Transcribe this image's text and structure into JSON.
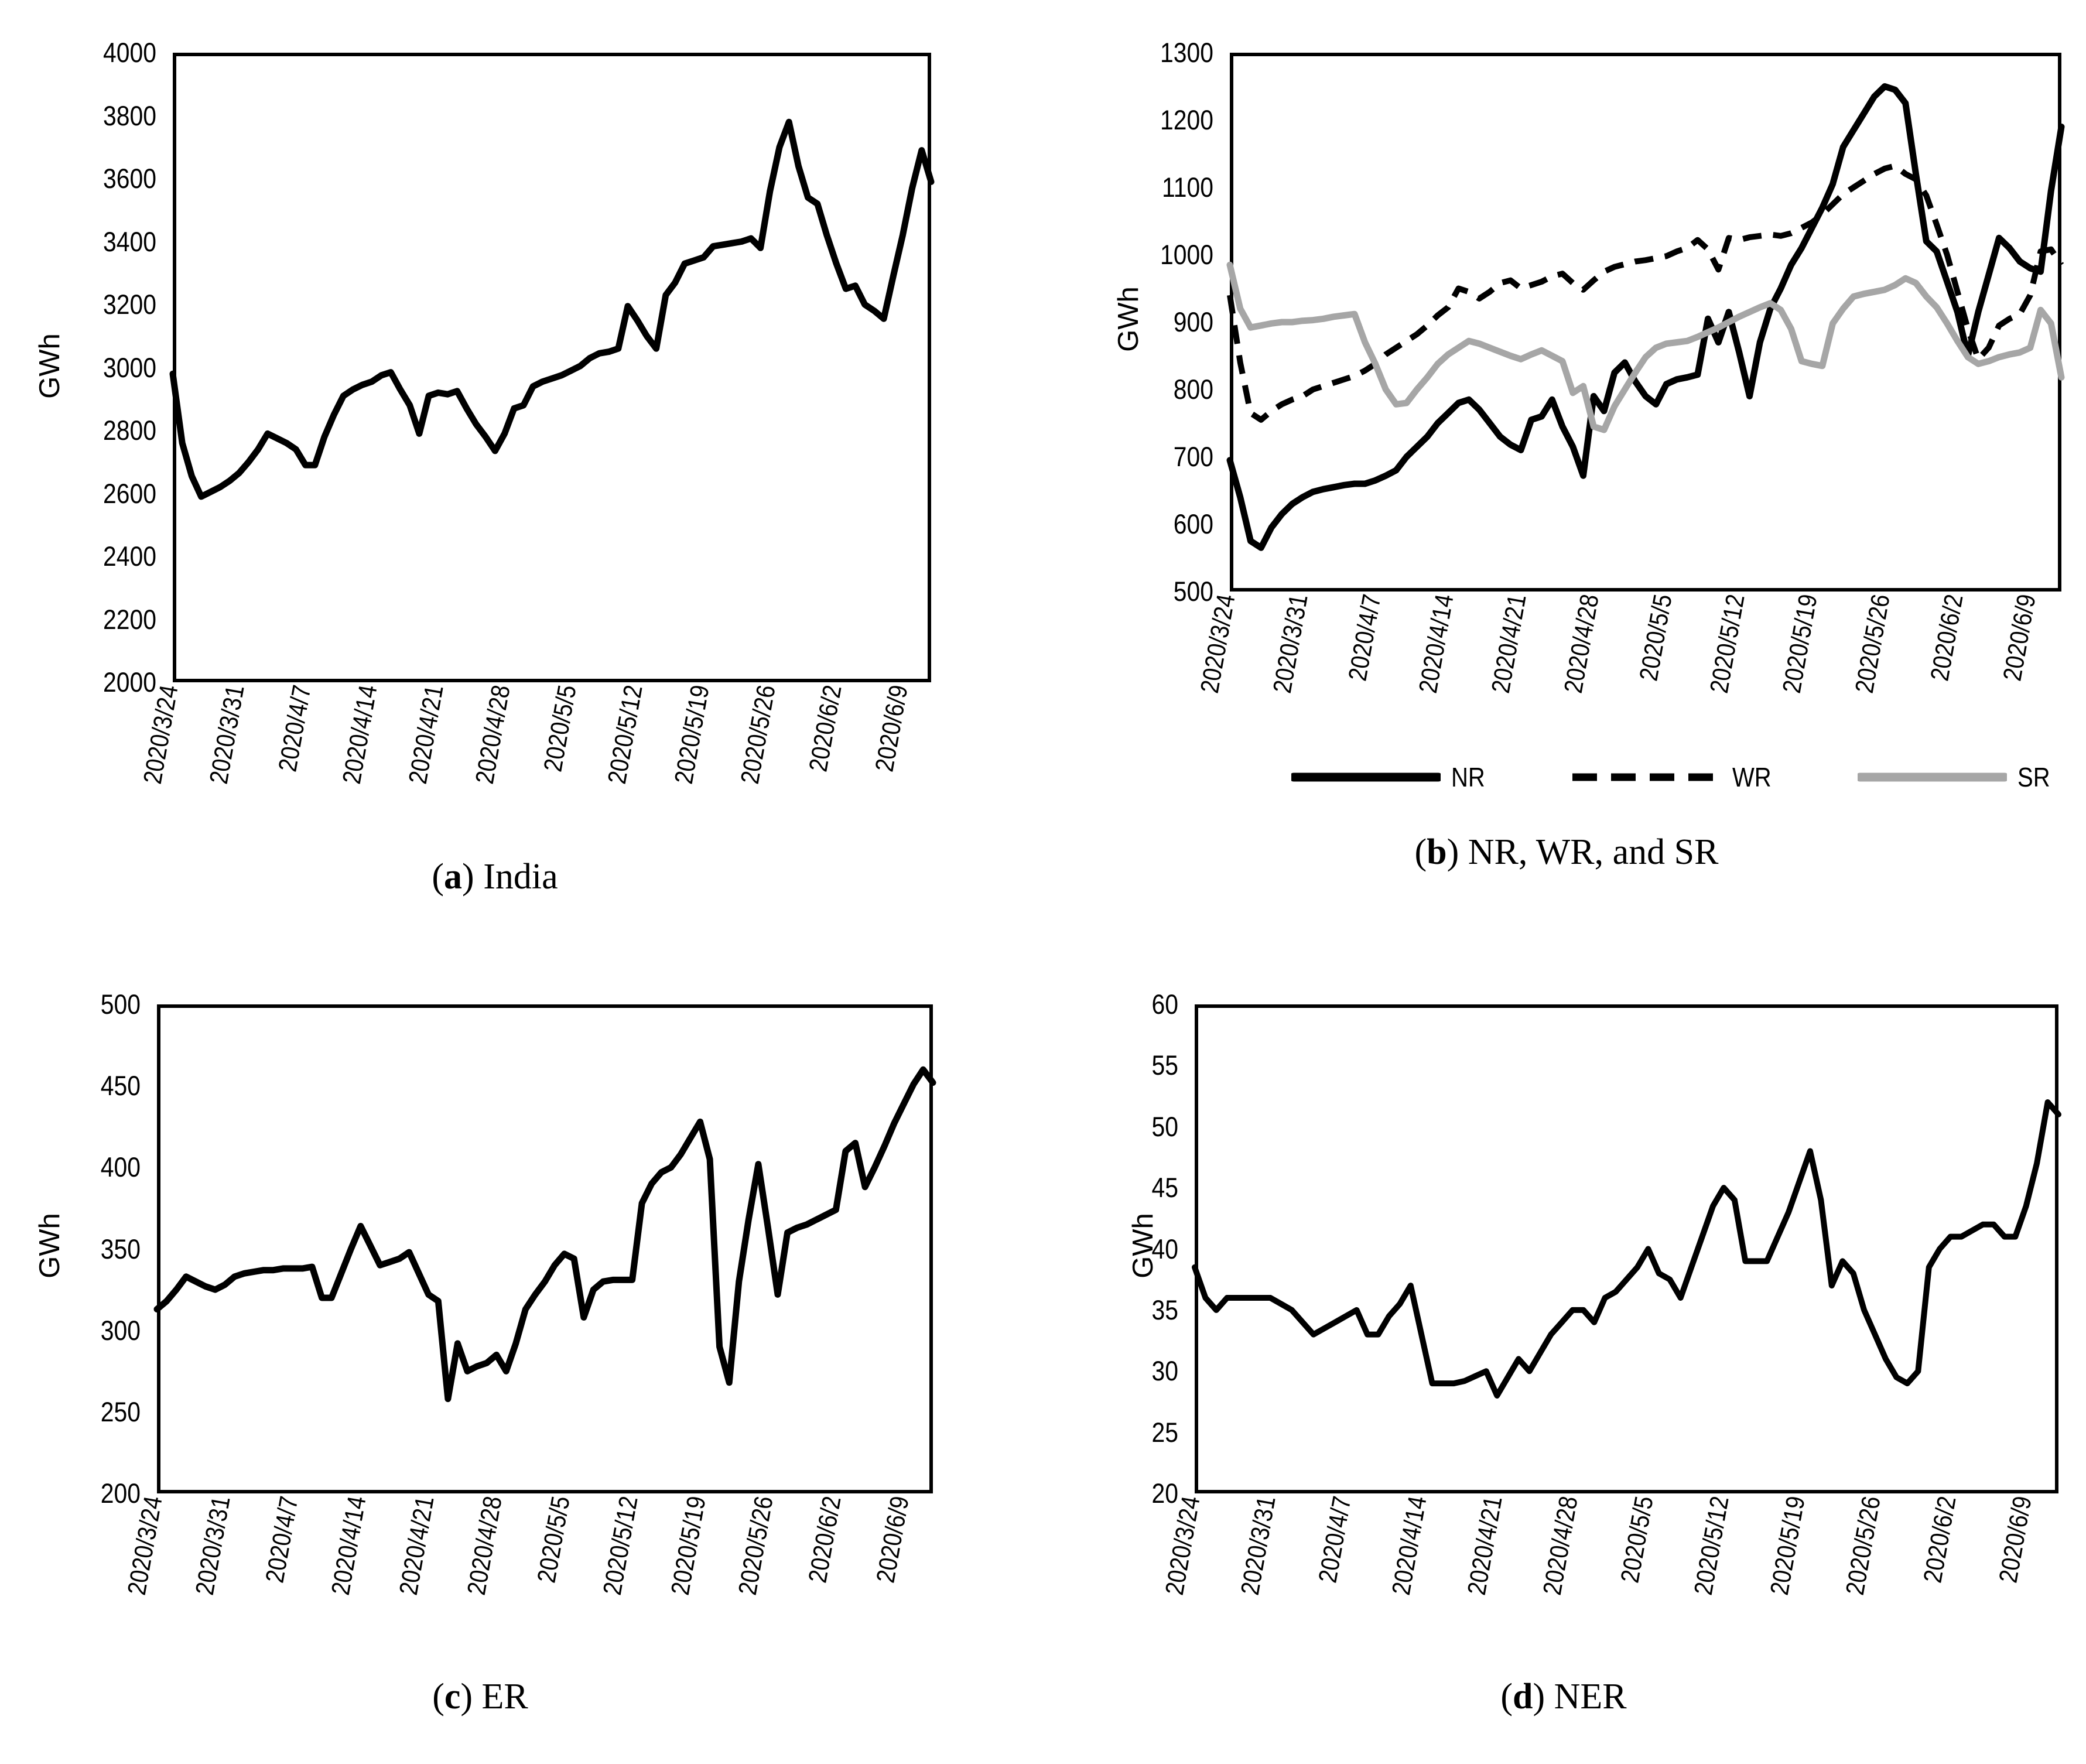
{
  "figure": {
    "unit_label": "GWh",
    "open_paren": "(",
    "close_paren": ") ",
    "colors": {
      "black": "#000000",
      "gray": "#a6a6a6",
      "background": "#ffffff"
    },
    "captions": [
      {
        "letter": "a",
        "text": "India"
      },
      {
        "letter": "b",
        "text": "NR, WR, and SR"
      },
      {
        "letter": "c",
        "text": "ER"
      },
      {
        "letter": "d",
        "text": "NER"
      }
    ],
    "legend": {
      "items": [
        {
          "label": "NR",
          "line": "solid",
          "color": "#000000"
        },
        {
          "label": "WR",
          "line": "dashed",
          "color": "#000000"
        },
        {
          "label": "SR",
          "line": "solid",
          "color": "#a6a6a6"
        }
      ]
    },
    "x_tick_labels": [
      "2020/3/24",
      "2020/3/31",
      "2020/4/7",
      "2020/4/14",
      "2020/4/21",
      "2020/4/28",
      "2020/5/5",
      "2020/5/12",
      "2020/5/19",
      "2020/5/26",
      "2020/6/2",
      "2020/6/9"
    ],
    "x_tick_days": [
      0,
      7,
      14,
      21,
      28,
      35,
      42,
      49,
      56,
      63,
      70,
      77
    ],
    "x_dates": [
      "2020/3/24",
      "2020/3/25",
      "2020/3/26",
      "2020/3/27",
      "2020/3/28",
      "2020/3/29",
      "2020/3/30",
      "2020/3/31",
      "2020/4/1",
      "2020/4/2",
      "2020/4/3",
      "2020/4/4",
      "2020/4/5",
      "2020/4/6",
      "2020/4/7",
      "2020/4/8",
      "2020/4/9",
      "2020/4/10",
      "2020/4/11",
      "2020/4/12",
      "2020/4/13",
      "2020/4/14",
      "2020/4/15",
      "2020/4/16",
      "2020/4/17",
      "2020/4/18",
      "2020/4/19",
      "2020/4/20",
      "2020/4/21",
      "2020/4/22",
      "2020/4/23",
      "2020/4/24",
      "2020/4/25",
      "2020/4/26",
      "2020/4/27",
      "2020/4/28",
      "2020/4/29",
      "2020/4/30",
      "2020/5/1",
      "2020/5/2",
      "2020/5/3",
      "2020/5/4",
      "2020/5/5",
      "2020/5/6",
      "2020/5/7",
      "2020/5/8",
      "2020/5/9",
      "2020/5/10",
      "2020/5/11",
      "2020/5/12",
      "2020/5/13",
      "2020/5/14",
      "2020/5/15",
      "2020/5/16",
      "2020/5/17",
      "2020/5/18",
      "2020/5/19",
      "2020/5/20",
      "2020/5/21",
      "2020/5/22",
      "2020/5/23",
      "2020/5/24",
      "2020/5/25",
      "2020/5/26",
      "2020/5/27",
      "2020/5/28",
      "2020/5/29",
      "2020/5/30",
      "2020/5/31",
      "2020/6/1",
      "2020/6/2",
      "2020/6/3",
      "2020/6/4",
      "2020/6/5",
      "2020/6/6",
      "2020/6/7",
      "2020/6/8",
      "2020/6/9",
      "2020/6/10",
      "2020/6/11",
      "2020/6/12"
    ]
  },
  "chart_data": [
    {
      "type": "line",
      "panel": "a",
      "title": "(a) India",
      "ylabel": "GWh",
      "ylim": [
        2000,
        4000
      ],
      "yticks": [
        2000,
        2200,
        2400,
        2600,
        2800,
        3000,
        3200,
        3400,
        3600,
        3800,
        4000
      ],
      "grid": false,
      "legend_position": "none",
      "x_ref": "x_dates",
      "series": [
        {
          "name": "India",
          "color": "#000000",
          "dash": false,
          "values": [
            2980,
            2760,
            2655,
            2590,
            2605,
            2620,
            2640,
            2665,
            2700,
            2740,
            2790,
            2775,
            2760,
            2740,
            2690,
            2690,
            2780,
            2850,
            2910,
            2930,
            2945,
            2955,
            2975,
            2985,
            2930,
            2880,
            2790,
            2910,
            2920,
            2915,
            2925,
            2870,
            2820,
            2780,
            2735,
            2790,
            2870,
            2880,
            2940,
            2955,
            2965,
            2975,
            2990,
            3005,
            3030,
            3045,
            3050,
            3060,
            3195,
            3150,
            3100,
            3060,
            3230,
            3270,
            3330,
            3340,
            3350,
            3385,
            3390,
            3395,
            3400,
            3410,
            3380,
            3560,
            3700,
            3780,
            3640,
            3540,
            3520,
            3420,
            3330,
            3250,
            3260,
            3200,
            3180,
            3155,
            3290,
            3420,
            3570,
            3690,
            3590
          ]
        }
      ]
    },
    {
      "type": "line",
      "panel": "b",
      "title": "(b) NR, WR, and SR",
      "ylabel": "GWh",
      "ylim": [
        500,
        1300
      ],
      "yticks": [
        500,
        600,
        700,
        800,
        900,
        1000,
        1100,
        1200,
        1300
      ],
      "grid": false,
      "legend_position": "bottom",
      "x_ref": "x_dates",
      "series": [
        {
          "name": "NR",
          "color": "#000000",
          "dash": false,
          "values": [
            695,
            640,
            575,
            565,
            595,
            615,
            630,
            640,
            648,
            652,
            655,
            658,
            660,
            660,
            665,
            672,
            680,
            700,
            715,
            730,
            750,
            765,
            780,
            785,
            770,
            750,
            730,
            718,
            710,
            755,
            760,
            785,
            745,
            715,
            672,
            790,
            768,
            825,
            840,
            812,
            790,
            778,
            808,
            815,
            818,
            822,
            905,
            870,
            915,
            855,
            790,
            870,
            920,
            950,
            985,
            1010,
            1040,
            1070,
            1105,
            1160,
            1185,
            1210,
            1235,
            1250,
            1245,
            1225,
            1120,
            1020,
            1005,
            960,
            915,
            850,
            915,
            970,
            1025,
            1010,
            990,
            980,
            975,
            1095,
            1190
          ]
        },
        {
          "name": "WR",
          "color": "#000000",
          "dash": true,
          "values": [
            940,
            840,
            765,
            755,
            768,
            778,
            785,
            790,
            800,
            805,
            810,
            815,
            820,
            828,
            838,
            852,
            862,
            872,
            882,
            895,
            910,
            922,
            950,
            945,
            935,
            945,
            958,
            962,
            950,
            955,
            960,
            968,
            972,
            958,
            948,
            962,
            975,
            982,
            986,
            990,
            992,
            995,
            998,
            1005,
            1010,
            1022,
            1008,
            978,
            1025,
            1022,
            1026,
            1028,
            1030,
            1028,
            1032,
            1040,
            1048,
            1060,
            1075,
            1090,
            1100,
            1110,
            1120,
            1128,
            1132,
            1120,
            1112,
            1088,
            1045,
            1000,
            945,
            890,
            845,
            862,
            895,
            905,
            912,
            940,
            1005,
            1008,
            985
          ]
        },
        {
          "name": "SR",
          "color": "#a6a6a6",
          "dash": false,
          "values": [
            985,
            920,
            892,
            895,
            898,
            900,
            900,
            902,
            903,
            905,
            908,
            910,
            912,
            870,
            838,
            800,
            778,
            780,
            800,
            818,
            838,
            852,
            862,
            872,
            868,
            862,
            856,
            850,
            845,
            852,
            858,
            850,
            842,
            795,
            805,
            745,
            740,
            775,
            800,
            825,
            848,
            862,
            868,
            870,
            872,
            878,
            885,
            892,
            900,
            908,
            915,
            922,
            928,
            918,
            890,
            842,
            838,
            835,
            898,
            920,
            938,
            942,
            945,
            948,
            955,
            965,
            958,
            938,
            922,
            898,
            872,
            848,
            838,
            842,
            848,
            852,
            855,
            862,
            918,
            898,
            818
          ]
        }
      ]
    },
    {
      "type": "line",
      "panel": "c",
      "title": "(c) ER",
      "ylabel": "GWh",
      "ylim": [
        200,
        500
      ],
      "yticks": [
        200,
        250,
        300,
        350,
        400,
        450,
        500
      ],
      "grid": false,
      "legend_position": "none",
      "x_ref": "x_dates",
      "series": [
        {
          "name": "ER",
          "color": "#000000",
          "dash": false,
          "values": [
            313,
            318,
            325,
            333,
            330,
            327,
            325,
            328,
            333,
            335,
            336,
            337,
            337,
            338,
            338,
            338,
            339,
            320,
            320,
            335,
            350,
            364,
            352,
            340,
            342,
            344,
            348,
            335,
            322,
            318,
            258,
            292,
            275,
            278,
            280,
            285,
            275,
            292,
            313,
            322,
            330,
            340,
            347,
            344,
            308,
            325,
            330,
            331,
            331,
            331,
            378,
            390,
            397,
            400,
            408,
            418,
            428,
            405,
            290,
            268,
            330,
            368,
            402,
            363,
            322,
            360,
            363,
            365,
            368,
            371,
            374,
            410,
            415,
            388,
            400,
            413,
            427,
            439,
            451,
            460,
            452
          ]
        }
      ]
    },
    {
      "type": "line",
      "panel": "d",
      "title": "(d) NER",
      "ylabel": "GWh",
      "ylim": [
        20,
        60
      ],
      "yticks": [
        20,
        25,
        30,
        35,
        40,
        45,
        50,
        55,
        60
      ],
      "grid": false,
      "legend_position": "none",
      "x_ref": "x_dates",
      "series": [
        {
          "name": "NER",
          "color": "#000000",
          "dash": false,
          "values": [
            38.5,
            36,
            35,
            36,
            36,
            36,
            36,
            36,
            35.5,
            35,
            34,
            33,
            33.5,
            34,
            34.5,
            35,
            33,
            33,
            34.5,
            35.5,
            37,
            33,
            29,
            29,
            29,
            29.2,
            29.6,
            30,
            28,
            29.5,
            31,
            30,
            31.5,
            33,
            34,
            35,
            35,
            34,
            36,
            36.5,
            37.5,
            38.5,
            40,
            38,
            37.5,
            36,
            38.5,
            41,
            43.5,
            45,
            44,
            39,
            39,
            39,
            41,
            43,
            45.5,
            48,
            44,
            37,
            39,
            38,
            35,
            33,
            31,
            29.5,
            29,
            30,
            38.5,
            40,
            41,
            41,
            41.5,
            42,
            42,
            41,
            41,
            43.5,
            47,
            52,
            51
          ]
        }
      ]
    }
  ]
}
